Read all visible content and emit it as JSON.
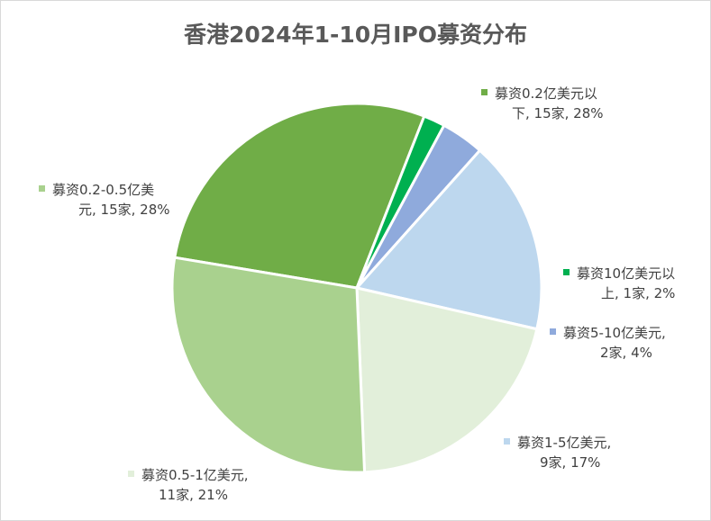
{
  "chart_data": {
    "type": "pie",
    "title": "香港2024年1-10月IPO募资分布",
    "slices": [
      {
        "label_lines": [
          "募资0.2亿美元以",
          "下, 15家, 28%"
        ],
        "count": 15,
        "percent": 28,
        "color": "#70ad47"
      },
      {
        "label_lines": [
          "募资10亿美元以",
          "上, 1家, 2%"
        ],
        "count": 1,
        "percent": 2,
        "color": "#00b050"
      },
      {
        "label_lines": [
          "募资5-10亿美元,",
          "2家, 4%"
        ],
        "count": 2,
        "percent": 4,
        "color": "#8faadc"
      },
      {
        "label_lines": [
          "募资1-5亿美元,",
          "9家, 17%"
        ],
        "count": 9,
        "percent": 17,
        "color": "#bdd7ee"
      },
      {
        "label_lines": [
          "募资0.5-1亿美元,",
          "11家, 21%"
        ],
        "count": 11,
        "percent": 21,
        "color": "#e2efda"
      },
      {
        "label_lines": [
          "募资0.2-0.5亿美",
          "元, 15家, 28%"
        ],
        "count": 15,
        "percent": 28,
        "color": "#a9d18e"
      }
    ]
  }
}
